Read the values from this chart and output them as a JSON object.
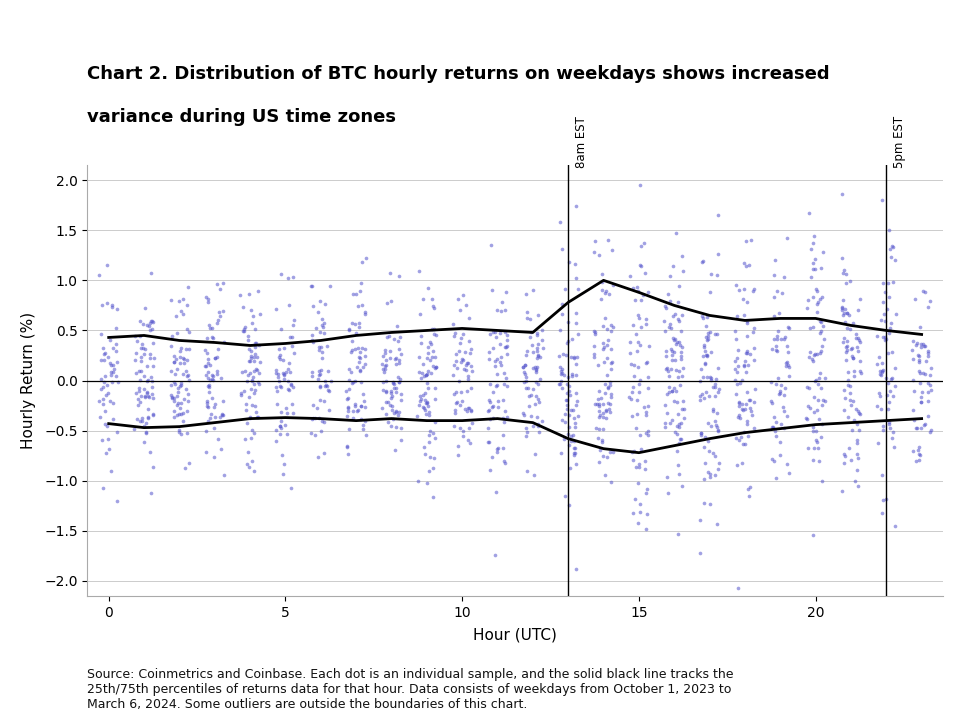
{
  "title_line1": "Chart 2. Distribution of BTC hourly returns on weekdays shows increased",
  "title_line2": "variance during US time zones",
  "xlabel": "Hour (UTC)",
  "ylabel": "Hourly Return (%)",
  "ylim": [
    -2.15,
    2.15
  ],
  "xlim": [
    -0.6,
    23.6
  ],
  "yticks": [
    -2,
    -1.5,
    -1,
    -0.5,
    0,
    0.5,
    1,
    1.5,
    2
  ],
  "xticks": [
    0,
    5,
    10,
    15,
    20
  ],
  "dot_color": "#5555cc",
  "dot_alpha": 0.55,
  "dot_size": 7,
  "line_color": "black",
  "line_width": 2.0,
  "vline_hours": [
    13,
    22
  ],
  "vline_labels": [
    "8am EST",
    "5pm EST"
  ],
  "background_color": "#ffffff",
  "footnote": "Source: Coinmetrics and Coinbase. Each dot is an individual sample, and the solid black line tracks the\n25th/75th percentiles of returns data for that hour. Data consists of weekdays from October 1, 2023 to\nMarch 6, 2024. Some outliers are outside the boundaries of this chart.",
  "percentile_25": [
    -0.43,
    -0.47,
    -0.46,
    -0.42,
    -0.38,
    -0.37,
    -0.38,
    -0.4,
    -0.38,
    -0.4,
    -0.4,
    -0.38,
    -0.42,
    -0.58,
    -0.68,
    -0.72,
    -0.65,
    -0.58,
    -0.52,
    -0.48,
    -0.44,
    -0.42,
    -0.4,
    -0.38
  ],
  "percentile_75": [
    0.43,
    0.45,
    0.4,
    0.38,
    0.35,
    0.37,
    0.4,
    0.45,
    0.48,
    0.5,
    0.52,
    0.5,
    0.48,
    0.78,
    1.0,
    0.88,
    0.75,
    0.65,
    0.6,
    0.62,
    0.62,
    0.55,
    0.5,
    0.46
  ],
  "seed": 42
}
